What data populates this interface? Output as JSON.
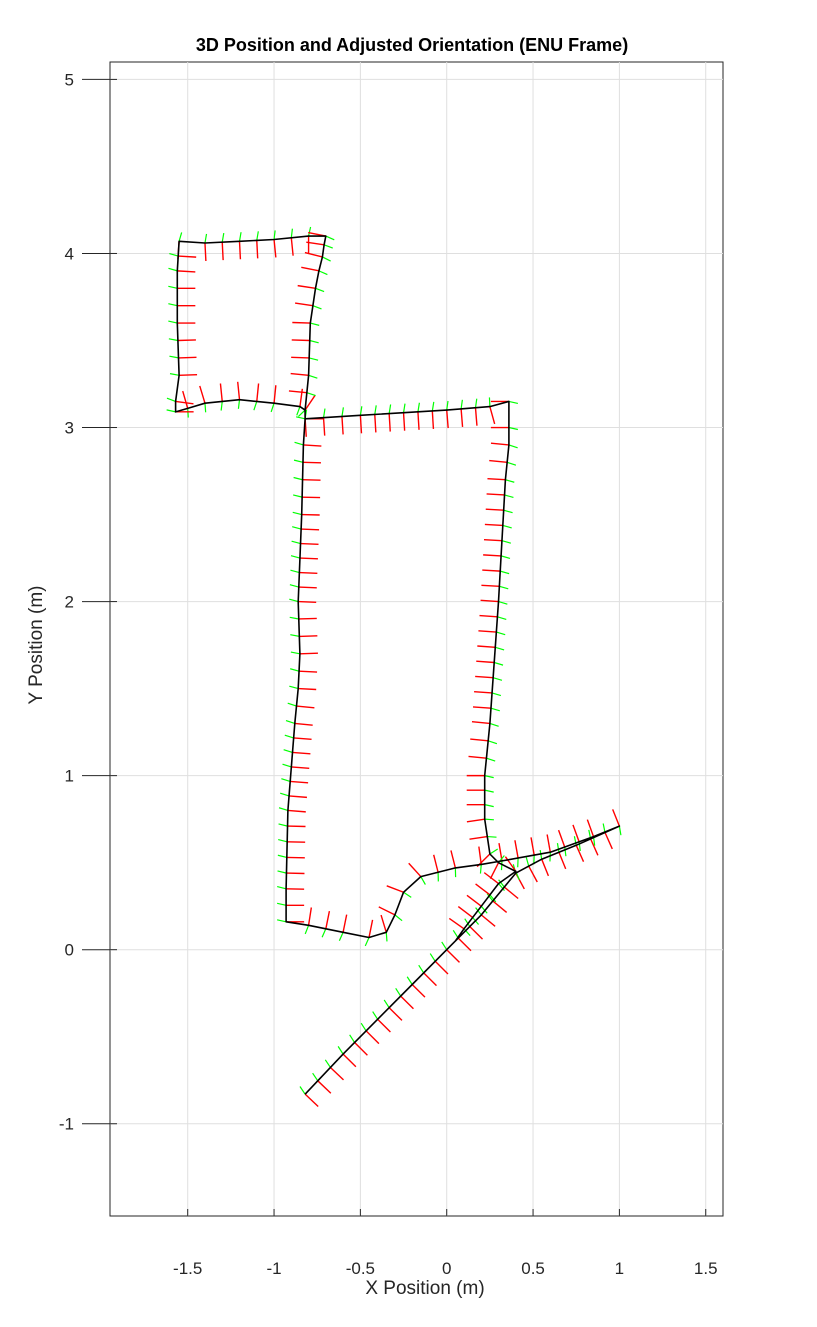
{
  "chart_data": {
    "type": "line",
    "title": "3D Position and Adjusted Orientation (ENU Frame)",
    "xlabel": "X Position (m)",
    "ylabel": "Y Position (m)",
    "xlim": [
      -1.95,
      1.6
    ],
    "ylim": [
      -1.53,
      5.1
    ],
    "xticks": [
      -1.5,
      -1,
      -0.5,
      0,
      0.5,
      1,
      1.5
    ],
    "xtick_labels": [
      "-1.5",
      "-1",
      "-0.5",
      "0",
      "0.5",
      "1",
      "1.5"
    ],
    "yticks": [
      -1,
      0,
      1,
      2,
      3,
      4,
      5
    ],
    "ytick_labels": [
      "-1",
      "0",
      "1",
      "2",
      "3",
      "4",
      "5"
    ],
    "grid": true,
    "legend": "none",
    "series": [
      {
        "kind": "trajectory",
        "color": "#000000",
        "points": [
          [
            -0.82,
            -0.83
          ],
          [
            -0.6,
            -0.6
          ],
          [
            -0.4,
            -0.4
          ],
          [
            -0.2,
            -0.2
          ],
          [
            0.0,
            -0.0
          ],
          [
            0.2,
            0.2
          ],
          [
            0.4,
            0.44
          ],
          [
            0.55,
            0.52
          ],
          [
            0.75,
            0.6
          ],
          [
            1.0,
            0.71
          ],
          [
            0.85,
            0.65
          ],
          [
            0.6,
            0.56
          ],
          [
            0.32,
            0.51
          ],
          [
            0.2,
            0.49
          ],
          [
            0.05,
            0.47
          ],
          [
            -0.15,
            0.42
          ],
          [
            -0.25,
            0.33
          ],
          [
            -0.3,
            0.2
          ],
          [
            -0.35,
            0.1
          ],
          [
            -0.45,
            0.07
          ],
          [
            -0.6,
            0.1
          ],
          [
            -0.8,
            0.14
          ],
          [
            -0.93,
            0.16
          ],
          [
            -0.93,
            0.35
          ],
          [
            -0.92,
            0.8
          ],
          [
            -0.88,
            1.3
          ],
          [
            -0.86,
            1.5
          ],
          [
            -0.85,
            1.7
          ],
          [
            -0.86,
            2.0
          ],
          [
            -0.84,
            2.5
          ],
          [
            -0.83,
            2.9
          ],
          [
            -0.82,
            3.05
          ],
          [
            -0.5,
            3.07
          ],
          [
            0.0,
            3.1
          ],
          [
            0.25,
            3.12
          ],
          [
            0.36,
            3.15
          ],
          [
            0.36,
            3.0
          ],
          [
            0.36,
            2.9
          ],
          [
            0.34,
            2.7
          ],
          [
            0.3,
            2.0
          ],
          [
            0.25,
            1.3
          ],
          [
            0.22,
            1.0
          ],
          [
            0.22,
            0.75
          ],
          [
            0.25,
            0.55
          ],
          [
            0.3,
            0.5
          ],
          [
            0.4,
            0.45
          ],
          [
            0.3,
            0.38
          ],
          [
            0.2,
            0.25
          ],
          [
            0.1,
            0.12
          ],
          [
            0.05,
            0.05
          ]
        ]
      },
      {
        "kind": "trajectory",
        "color": "#000000",
        "points": [
          [
            -0.82,
            3.05
          ],
          [
            -0.82,
            3.1
          ],
          [
            -0.85,
            3.12
          ],
          [
            -1.0,
            3.14
          ],
          [
            -1.2,
            3.16
          ],
          [
            -1.4,
            3.14
          ],
          [
            -1.5,
            3.11
          ],
          [
            -1.57,
            3.09
          ],
          [
            -1.57,
            3.15
          ],
          [
            -1.55,
            3.3
          ],
          [
            -1.56,
            3.6
          ],
          [
            -1.56,
            3.9
          ],
          [
            -1.55,
            4.07
          ],
          [
            -1.4,
            4.06
          ],
          [
            -1.2,
            4.07
          ],
          [
            -1.0,
            4.08
          ],
          [
            -0.8,
            4.1
          ],
          [
            -0.7,
            4.1
          ],
          [
            -0.71,
            4.05
          ],
          [
            -0.72,
            3.98
          ],
          [
            -0.74,
            3.9
          ],
          [
            -0.76,
            3.8
          ],
          [
            -0.79,
            3.6
          ],
          [
            -0.8,
            3.3
          ],
          [
            -0.82,
            3.1
          ]
        ]
      }
    ],
    "orientation_markers": {
      "x_axis_color": "#ff0000",
      "y_axis_color": "#00ff00",
      "description_hidden": true
    }
  }
}
